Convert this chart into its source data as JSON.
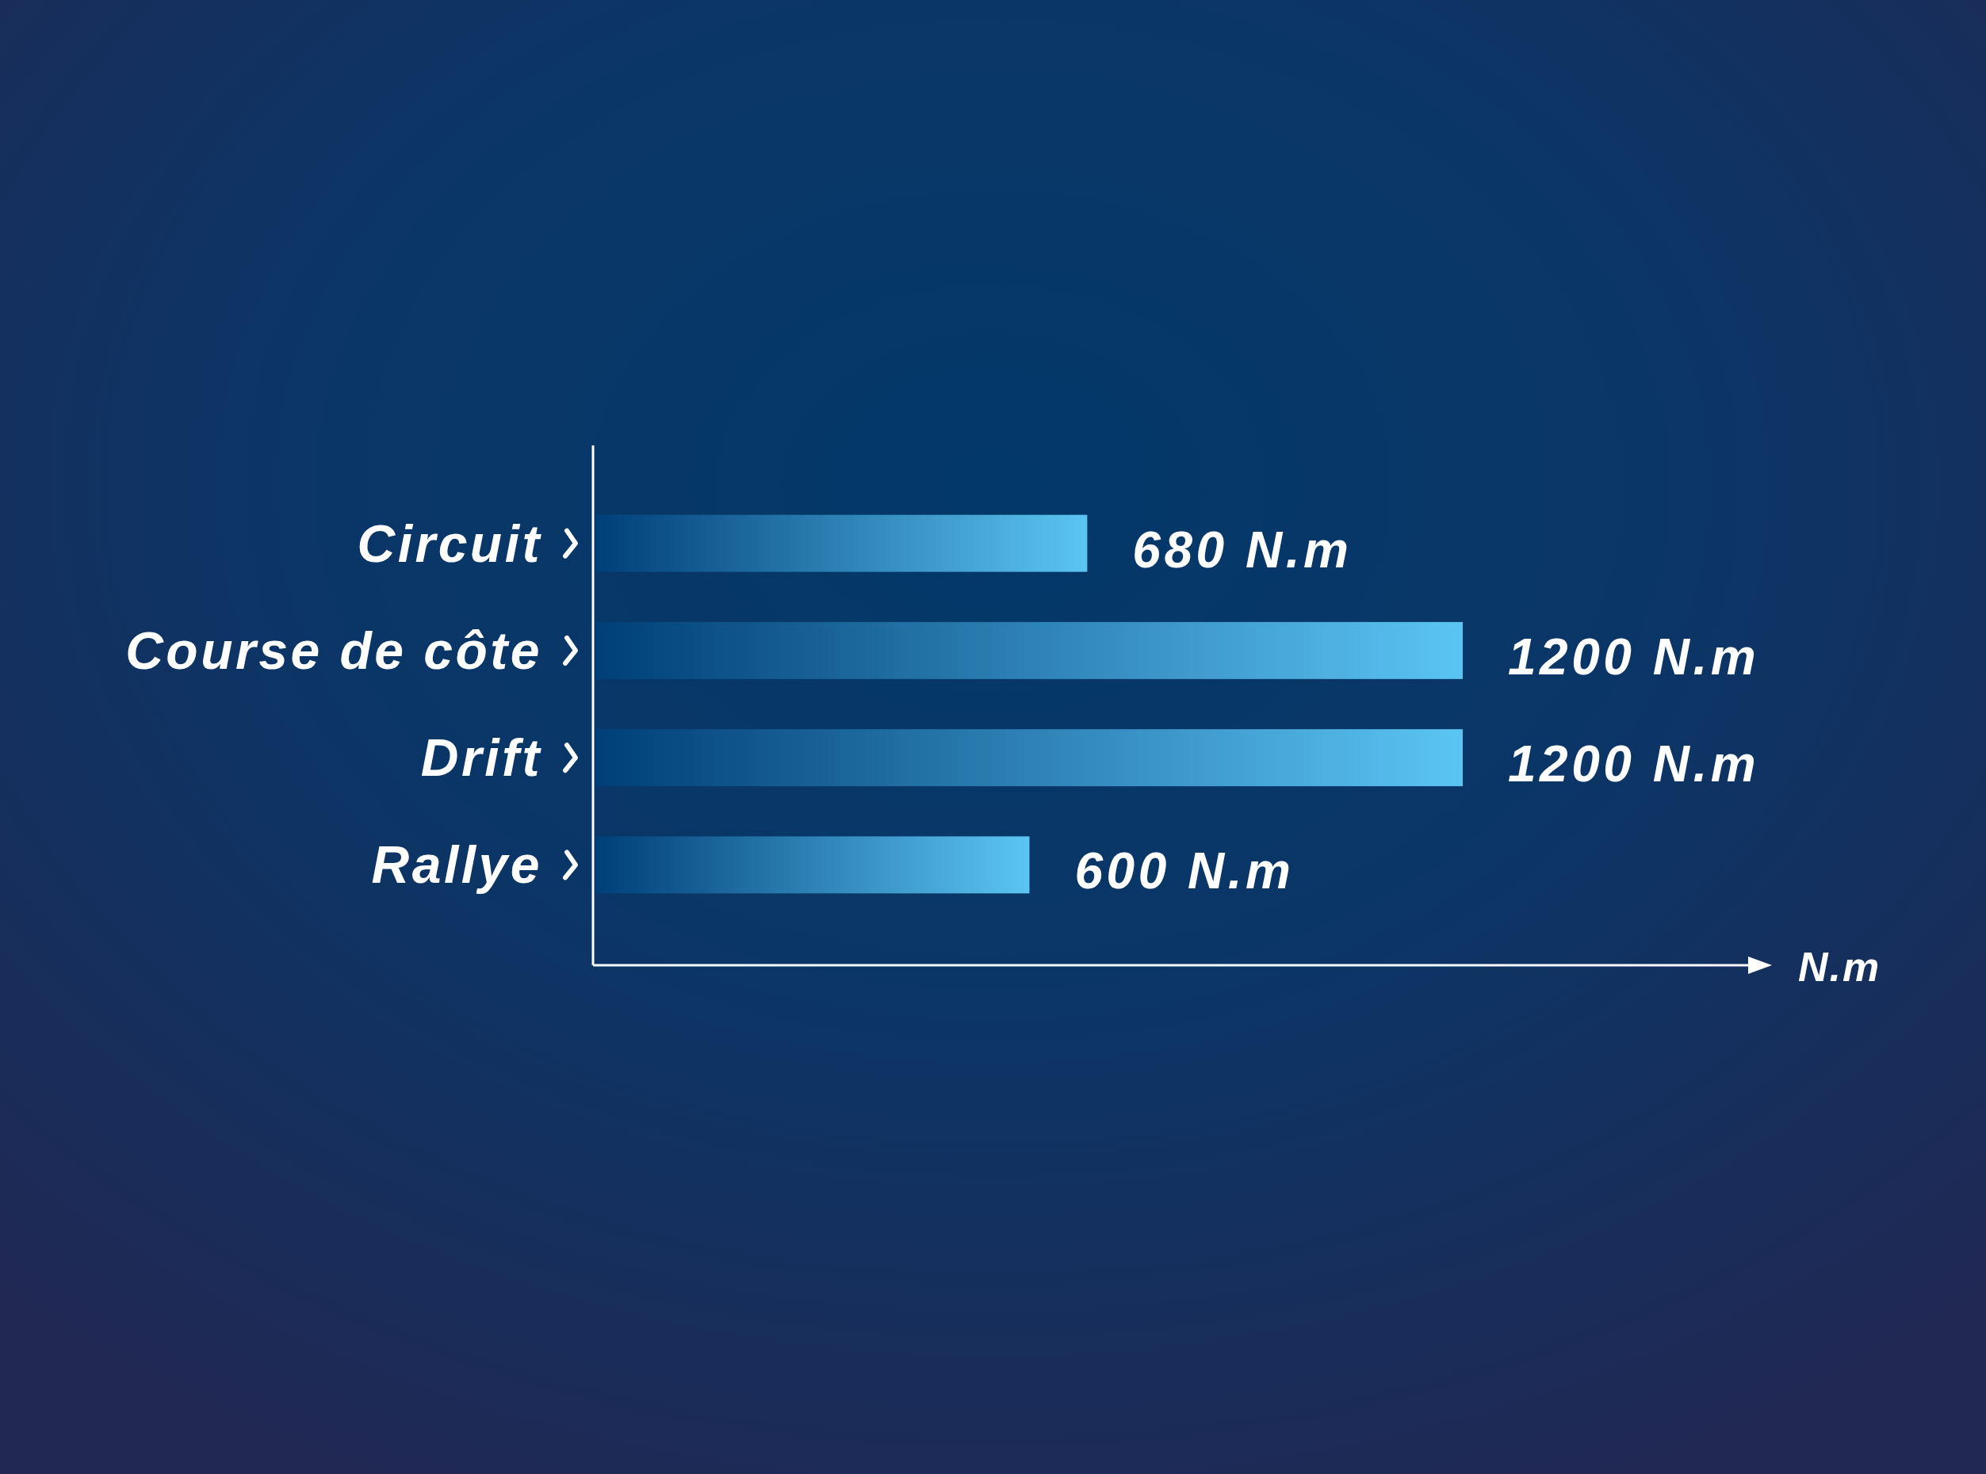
{
  "chart_data": {
    "type": "bar",
    "orientation": "horizontal",
    "categories": [
      "Circuit",
      "Course de côte",
      "Drift",
      "Rallye"
    ],
    "values": [
      680,
      1200,
      1200,
      600
    ],
    "value_labels": [
      "680 N.m",
      "1200 N.m",
      "1200 N.m",
      "600 N.m"
    ],
    "color": "#5bc5f2",
    "annotations": [
      "N.m"
    ],
    "tick_labels": "y"
  }
}
